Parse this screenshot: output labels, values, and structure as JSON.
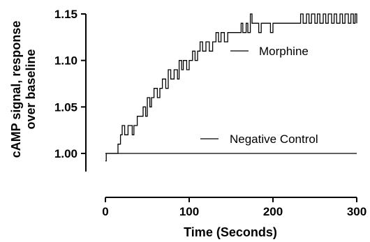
{
  "chart_data": {
    "type": "line",
    "ylabel_lines": [
      "cAMP signal, response",
      "over baseline"
    ],
    "xlabel": "Time (Seconds)",
    "xlim": [
      0,
      300
    ],
    "ylim": [
      0.985,
      1.15
    ],
    "x_ticks": [
      0,
      100,
      200,
      300
    ],
    "y_ticks": [
      1.0,
      1.05,
      1.1,
      1.15
    ],
    "x_tick_labels": [
      "0",
      "100",
      "200",
      "300"
    ],
    "y_tick_labels": [
      "1.00",
      "1.05",
      "1.10",
      "1.15"
    ],
    "grid": false,
    "series": [
      {
        "name": "Morphine",
        "points": [
          [
            0,
            0.992
          ],
          [
            1,
            1.0
          ],
          [
            14,
            1.0
          ],
          [
            15,
            1.01
          ],
          [
            18,
            1.02
          ],
          [
            20,
            1.03
          ],
          [
            23,
            1.02
          ],
          [
            27,
            1.03
          ],
          [
            32,
            1.02
          ],
          [
            34,
            1.03
          ],
          [
            38,
            1.04
          ],
          [
            42,
            1.04
          ],
          [
            45,
            1.05
          ],
          [
            48,
            1.04
          ],
          [
            50,
            1.06
          ],
          [
            53,
            1.05
          ],
          [
            55,
            1.06
          ],
          [
            58,
            1.07
          ],
          [
            62,
            1.06
          ],
          [
            65,
            1.07
          ],
          [
            68,
            1.08
          ],
          [
            72,
            1.07
          ],
          [
            75,
            1.09
          ],
          [
            78,
            1.08
          ],
          [
            82,
            1.09
          ],
          [
            86,
            1.08
          ],
          [
            88,
            1.1
          ],
          [
            91,
            1.09
          ],
          [
            93,
            1.1
          ],
          [
            97,
            1.09
          ],
          [
            100,
            1.1
          ],
          [
            104,
            1.11
          ],
          [
            107,
            1.1
          ],
          [
            110,
            1.11
          ],
          [
            113,
            1.12
          ],
          [
            116,
            1.11
          ],
          [
            120,
            1.12
          ],
          [
            124,
            1.11
          ],
          [
            128,
            1.12
          ],
          [
            132,
            1.13
          ],
          [
            135,
            1.12
          ],
          [
            138,
            1.13
          ],
          [
            142,
            1.12
          ],
          [
            146,
            1.13
          ],
          [
            150,
            1.13
          ],
          [
            155,
            1.13
          ],
          [
            160,
            1.13
          ],
          [
            162,
            1.14
          ],
          [
            164,
            1.13
          ],
          [
            168,
            1.14
          ],
          [
            170,
            1.13
          ],
          [
            173,
            1.15
          ],
          [
            175,
            1.14
          ],
          [
            180,
            1.14
          ],
          [
            183,
            1.13
          ],
          [
            186,
            1.14
          ],
          [
            190,
            1.14
          ],
          [
            193,
            1.14
          ],
          [
            197,
            1.13
          ],
          [
            200,
            1.14
          ],
          [
            205,
            1.14
          ],
          [
            210,
            1.14
          ],
          [
            215,
            1.14
          ],
          [
            220,
            1.14
          ],
          [
            225,
            1.14
          ],
          [
            230,
            1.14
          ],
          [
            233,
            1.15
          ],
          [
            236,
            1.14
          ],
          [
            240,
            1.15
          ],
          [
            243,
            1.14
          ],
          [
            246,
            1.15
          ],
          [
            250,
            1.14
          ],
          [
            253,
            1.15
          ],
          [
            256,
            1.14
          ],
          [
            260,
            1.15
          ],
          [
            263,
            1.14
          ],
          [
            266,
            1.15
          ],
          [
            270,
            1.14
          ],
          [
            273,
            1.15
          ],
          [
            276,
            1.14
          ],
          [
            280,
            1.15
          ],
          [
            283,
            1.14
          ],
          [
            286,
            1.15
          ],
          [
            290,
            1.14
          ],
          [
            293,
            1.15
          ],
          [
            296,
            1.14
          ],
          [
            298,
            1.15
          ],
          [
            300,
            1.14
          ]
        ]
      },
      {
        "name": "Negative Control",
        "points": [
          [
            0,
            1.0
          ],
          [
            300,
            1.0
          ]
        ]
      }
    ]
  },
  "legend": {
    "items": [
      {
        "label": "Morphine"
      },
      {
        "label": "Negative Control"
      }
    ]
  }
}
